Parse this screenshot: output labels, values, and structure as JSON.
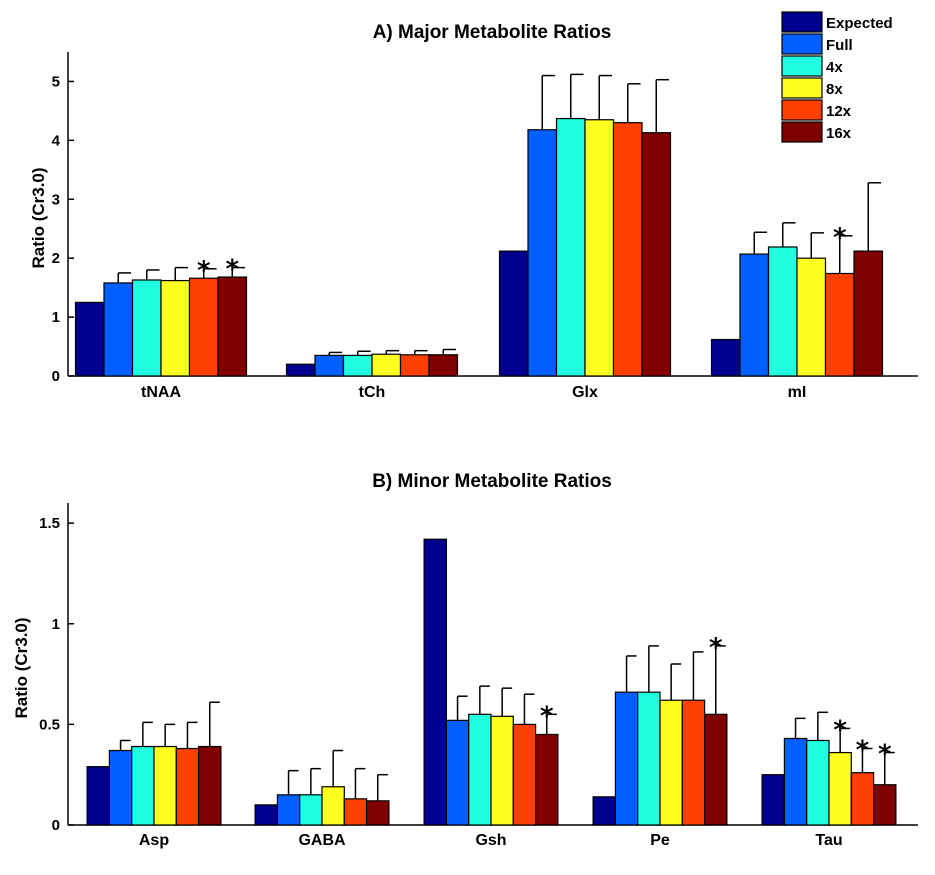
{
  "legend": {
    "entries": [
      {
        "label": "Expected",
        "color": "#00008f"
      },
      {
        "label": "Full",
        "color": "#0060ff"
      },
      {
        "label": "4x",
        "color": "#20ffdf"
      },
      {
        "label": "8x",
        "color": "#ffff20"
      },
      {
        "label": "12x",
        "color": "#ff4000"
      },
      {
        "label": "16x",
        "color": "#800000"
      }
    ]
  },
  "chart_data": [
    {
      "type": "bar",
      "title": "A) Major Metabolite Ratios",
      "ylabel": "Ratio (Cr3.0)",
      "xlabel": "",
      "ylim": [
        0,
        5.5
      ],
      "yticks": [
        "0",
        "1",
        "2",
        "3",
        "4",
        "5"
      ],
      "categories": [
        "tNAA",
        "tCh",
        "Glx",
        "mI"
      ],
      "series": [
        {
          "name": "Expected",
          "values": [
            1.25,
            0.2,
            2.12,
            0.62
          ],
          "errors": [
            null,
            null,
            null,
            null
          ],
          "star": [
            false,
            false,
            false,
            false
          ]
        },
        {
          "name": "Full",
          "values": [
            1.58,
            0.35,
            4.18,
            2.07
          ],
          "errors": [
            0.17,
            0.05,
            0.92,
            0.37
          ],
          "star": [
            false,
            false,
            false,
            false
          ]
        },
        {
          "name": "4x",
          "values": [
            1.63,
            0.35,
            4.37,
            2.19
          ],
          "errors": [
            0.17,
            0.07,
            0.75,
            0.41
          ],
          "star": [
            false,
            false,
            false,
            false
          ]
        },
        {
          "name": "8x",
          "values": [
            1.62,
            0.37,
            4.35,
            2.0
          ],
          "errors": [
            0.22,
            0.06,
            0.75,
            0.43
          ],
          "star": [
            false,
            false,
            false,
            false
          ]
        },
        {
          "name": "12x",
          "values": [
            1.66,
            0.36,
            4.3,
            1.74
          ],
          "errors": [
            0.16,
            0.07,
            0.66,
            0.64
          ],
          "star": [
            true,
            false,
            false,
            true
          ]
        },
        {
          "name": "16x",
          "values": [
            1.68,
            0.36,
            4.13,
            2.12
          ],
          "errors": [
            0.16,
            0.09,
            0.9,
            1.16
          ],
          "star": [
            true,
            false,
            false,
            false
          ]
        }
      ]
    },
    {
      "type": "bar",
      "title": "B) Minor Metabolite Ratios",
      "ylabel": "Ratio (Cr3.0)",
      "xlabel": "",
      "ylim": [
        0,
        1.6
      ],
      "yticks": [
        "0",
        "0.5",
        "1",
        "1.5"
      ],
      "categories": [
        "Asp",
        "GABA",
        "Gsh",
        "Pe",
        "Tau"
      ],
      "series": [
        {
          "name": "Expected",
          "values": [
            0.29,
            0.1,
            1.42,
            0.14,
            0.25
          ],
          "errors": [
            null,
            null,
            null,
            null,
            null
          ],
          "star": [
            false,
            false,
            false,
            false,
            false
          ]
        },
        {
          "name": "Full",
          "values": [
            0.37,
            0.15,
            0.52,
            0.66,
            0.43
          ],
          "errors": [
            0.05,
            0.12,
            0.12,
            0.18,
            0.1
          ],
          "star": [
            false,
            false,
            false,
            false,
            false
          ]
        },
        {
          "name": "4x",
          "values": [
            0.39,
            0.15,
            0.55,
            0.66,
            0.42
          ],
          "errors": [
            0.12,
            0.13,
            0.14,
            0.23,
            0.14
          ],
          "star": [
            false,
            false,
            false,
            false,
            false
          ]
        },
        {
          "name": "8x",
          "values": [
            0.39,
            0.19,
            0.54,
            0.62,
            0.36
          ],
          "errors": [
            0.11,
            0.18,
            0.14,
            0.18,
            0.12
          ],
          "star": [
            false,
            false,
            false,
            false,
            true
          ]
        },
        {
          "name": "12x",
          "values": [
            0.38,
            0.13,
            0.5,
            0.62,
            0.26
          ],
          "errors": [
            0.13,
            0.15,
            0.15,
            0.24,
            0.12
          ],
          "star": [
            false,
            false,
            false,
            false,
            true
          ]
        },
        {
          "name": "16x",
          "values": [
            0.39,
            0.12,
            0.45,
            0.55,
            0.2
          ],
          "errors": [
            0.22,
            0.13,
            0.1,
            0.34,
            0.16
          ],
          "star": [
            false,
            false,
            true,
            true,
            true
          ]
        }
      ]
    }
  ]
}
